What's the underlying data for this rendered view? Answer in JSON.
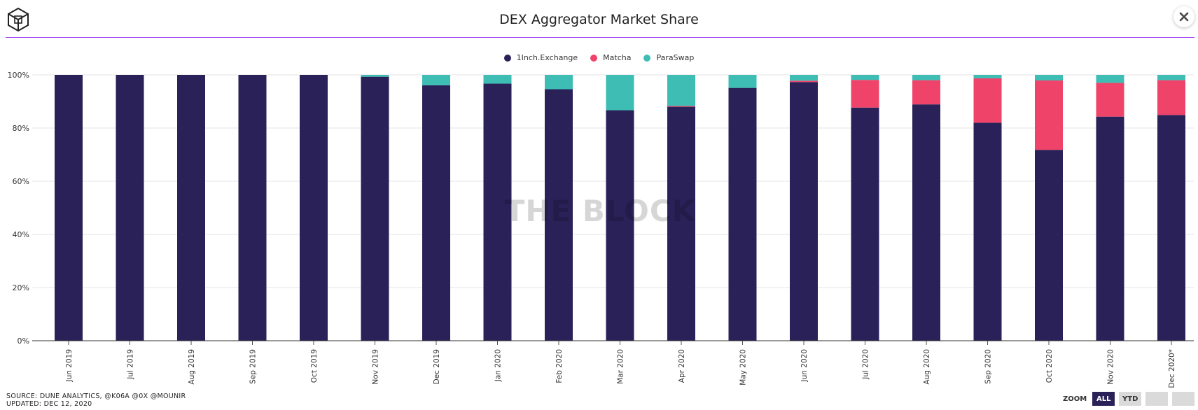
{
  "header": {
    "title": "DEX Aggregator Market Share"
  },
  "legend": [
    {
      "name": "1Inch.Exchange",
      "color": "#2a2159"
    },
    {
      "name": "Matcha",
      "color": "#f0436a"
    },
    {
      "name": "ParaSwap",
      "color": "#3dbdb4"
    }
  ],
  "watermark": "THE BLOCK",
  "footer": {
    "source": "SOURCE: DUNE ANALYTICS, @K06A @0X @MOUNIR",
    "updated": "UPDATED: DEC 12, 2020"
  },
  "zoom": {
    "label": "ZOOM",
    "buttons": [
      {
        "label": "ALL",
        "active": true
      },
      {
        "label": "YTD",
        "active": false
      },
      {
        "label": "",
        "active": false
      },
      {
        "label": "",
        "active": false
      }
    ]
  },
  "chart_data": {
    "type": "bar",
    "stacked": true,
    "title": "DEX Aggregator Market Share",
    "xlabel": "",
    "ylabel": "",
    "ylim": [
      0,
      100
    ],
    "yticks": [
      "0%",
      "20%",
      "40%",
      "60%",
      "80%",
      "100%"
    ],
    "grid": true,
    "legend_position": "top",
    "categories": [
      "Jun 2019",
      "Jul 2019",
      "Aug 2019",
      "Sep 2019",
      "Oct 2019",
      "Nov 2019",
      "Dec 2019",
      "Jan 2020",
      "Feb 2020",
      "Mar 2020",
      "Apr 2020",
      "May 2020",
      "Jun 2020",
      "Jul 2020",
      "Aug 2020",
      "Sep 2020",
      "Oct 2020",
      "Nov 2020",
      "Dec 2020*"
    ],
    "series": [
      {
        "name": "1Inch.Exchange",
        "color": "#2a2159",
        "values": [
          100,
          100,
          100,
          100,
          100,
          99.3,
          96.1,
          96.7,
          94.6,
          86.7,
          88.0,
          95.1,
          97.3,
          87.7,
          88.9,
          82.0,
          71.8,
          84.3,
          84.9
        ]
      },
      {
        "name": "Matcha",
        "color": "#f0436a",
        "values": [
          0,
          0,
          0,
          0,
          0,
          0,
          0,
          0,
          0,
          0,
          0.3,
          0,
          0.5,
          10.4,
          9.1,
          16.7,
          26.1,
          12.7,
          13.1
        ]
      },
      {
        "name": "ParaSwap",
        "color": "#3dbdb4",
        "values": [
          0,
          0,
          0,
          0,
          0,
          0.7,
          3.9,
          3.3,
          5.4,
          13.3,
          11.7,
          4.9,
          2.2,
          1.9,
          2.0,
          1.3,
          2.1,
          3.0,
          2.0
        ]
      }
    ]
  }
}
